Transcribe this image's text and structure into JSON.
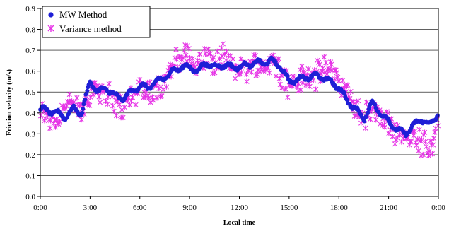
{
  "chart_data": {
    "type": "scatter",
    "xlabel": "Local time",
    "ylabel": "Friction velocity (m/s)",
    "x_ticks": [
      "0:00",
      "3:00",
      "6:00",
      "9:00",
      "12:00",
      "15:00",
      "18:00",
      "21:00",
      "0:00"
    ],
    "xlim_hours": [
      0,
      24
    ],
    "ylim": [
      0,
      0.9
    ],
    "y_ticks": [
      "0.0",
      "0.1",
      "0.2",
      "0.3",
      "0.4",
      "0.5",
      "0.6",
      "0.7",
      "0.8",
      "0.9"
    ],
    "grid": "horizontal",
    "legend_position": "top-left",
    "series": [
      {
        "name": "MW Method",
        "marker": "circle",
        "color": "#1f1fd6",
        "profile_hours": [
          0,
          0.5,
          1,
          1.5,
          2,
          2.5,
          3,
          3.5,
          4,
          4.5,
          5,
          5.5,
          6,
          6.5,
          7,
          7.5,
          8,
          8.5,
          9,
          9.5,
          10,
          10.5,
          11,
          11.5,
          12,
          12.5,
          13,
          13.5,
          14,
          14.5,
          15,
          15.5,
          16,
          16.5,
          17,
          17.5,
          18,
          18.5,
          19,
          19.5,
          20,
          20.5,
          21,
          21.5,
          22,
          22.5,
          23,
          23.5,
          24
        ],
        "profile_values": [
          0.42,
          0.41,
          0.4,
          0.38,
          0.42,
          0.4,
          0.55,
          0.5,
          0.52,
          0.48,
          0.47,
          0.5,
          0.53,
          0.52,
          0.55,
          0.57,
          0.6,
          0.62,
          0.62,
          0.6,
          0.64,
          0.62,
          0.63,
          0.62,
          0.62,
          0.63,
          0.64,
          0.64,
          0.65,
          0.62,
          0.55,
          0.56,
          0.57,
          0.58,
          0.57,
          0.55,
          0.52,
          0.46,
          0.42,
          0.37,
          0.45,
          0.4,
          0.36,
          0.32,
          0.3,
          0.34,
          0.37,
          0.34,
          0.4
        ]
      },
      {
        "name": "Variance method",
        "marker": "asterisk",
        "color": "#e633e6",
        "profile_hours": [
          0,
          0.5,
          1,
          1.5,
          2,
          2.5,
          3,
          3.5,
          4,
          4.5,
          5,
          5.5,
          6,
          6.5,
          7,
          7.5,
          8,
          8.5,
          9,
          9.5,
          10,
          10.5,
          11,
          11.5,
          12,
          12.5,
          13,
          13.5,
          14,
          14.5,
          15,
          15.5,
          16,
          16.5,
          17,
          17.5,
          18,
          18.5,
          19,
          19.5,
          20,
          20.5,
          21,
          21.5,
          22,
          22.5,
          23,
          23.5,
          24
        ],
        "profile_values": [
          0.4,
          0.38,
          0.36,
          0.45,
          0.43,
          0.4,
          0.5,
          0.52,
          0.5,
          0.44,
          0.43,
          0.48,
          0.52,
          0.5,
          0.52,
          0.56,
          0.62,
          0.66,
          0.68,
          0.62,
          0.67,
          0.63,
          0.66,
          0.62,
          0.62,
          0.61,
          0.63,
          0.62,
          0.66,
          0.6,
          0.53,
          0.55,
          0.57,
          0.58,
          0.6,
          0.62,
          0.55,
          0.49,
          0.43,
          0.38,
          0.42,
          0.37,
          0.34,
          0.31,
          0.3,
          0.28,
          0.26,
          0.24,
          0.35
        ]
      }
    ]
  }
}
